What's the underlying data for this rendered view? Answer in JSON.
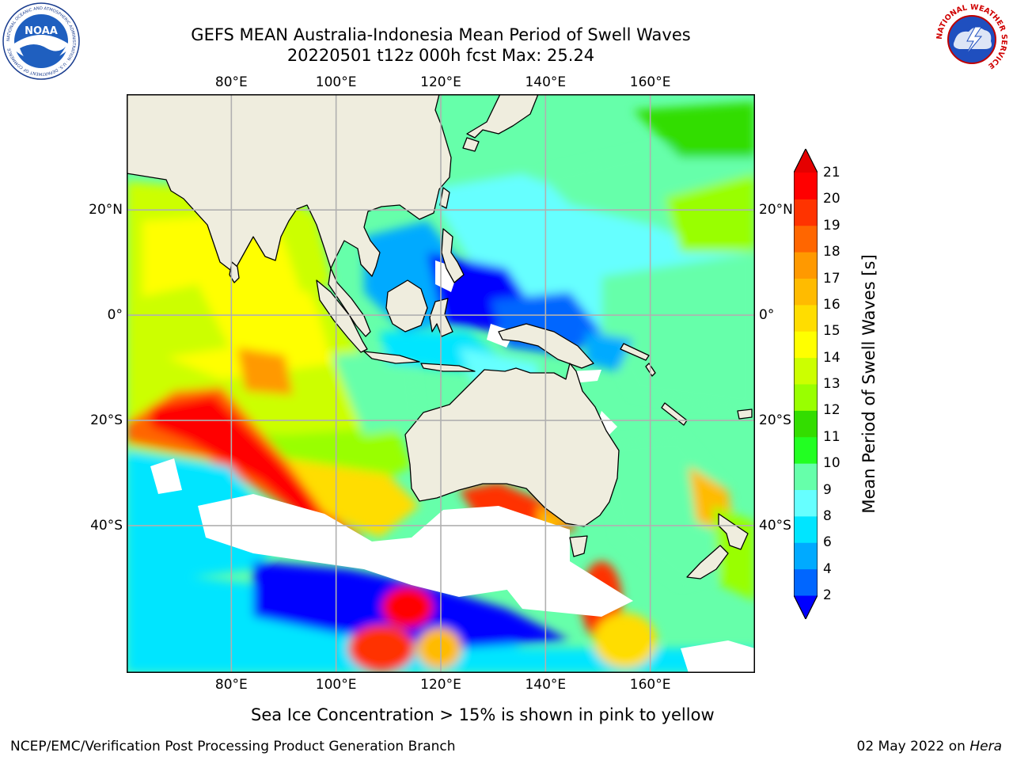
{
  "title": {
    "line1": "GEFS MEAN Australia-Indonesia Mean Period of Swell Waves",
    "line2": "20220501 t12z 000h fcst   Max: 25.24"
  },
  "map": {
    "lon_range": [
      60,
      180
    ],
    "lat_range": [
      -68,
      42
    ],
    "lon_ticks": [
      {
        "value": 80,
        "label": "80°E"
      },
      {
        "value": 100,
        "label": "100°E"
      },
      {
        "value": 120,
        "label": "120°E"
      },
      {
        "value": 140,
        "label": "140°E"
      },
      {
        "value": 160,
        "label": "160°E"
      }
    ],
    "lat_ticks": [
      {
        "value": 20,
        "label": "20°N"
      },
      {
        "value": 0,
        "label": "0°"
      },
      {
        "value": -20,
        "label": "20°S"
      },
      {
        "value": -40,
        "label": "40°S"
      }
    ],
    "land_color": "#efedde",
    "grid_color": "#b0b0b0"
  },
  "colorbar": {
    "label": "Mean Period of Swell Waves [s]",
    "ticks": [
      "2",
      "4",
      "6",
      "8",
      "9",
      "10",
      "11",
      "12",
      "13",
      "14",
      "15",
      "16",
      "17",
      "18",
      "19",
      "20",
      "21"
    ],
    "colors": [
      "#0000ff",
      "#0066ff",
      "#00aaff",
      "#00e5ff",
      "#66ffff",
      "#66ffaa",
      "#22ff22",
      "#33dd00",
      "#99ff00",
      "#ccff00",
      "#ffff00",
      "#ffdd00",
      "#ffbb00",
      "#ff9900",
      "#ff6600",
      "#ff3300",
      "#ff0000",
      "#e50000"
    ]
  },
  "footnote": "Sea Ice Concentration > 15% is shown in pink to yellow",
  "credit": {
    "left": "NCEP/EMC/Verification Post Processing Product Generation Branch",
    "date": "02 May 2022 on ",
    "machine": "Hera"
  },
  "logos": {
    "noaa_text": "NOAA",
    "noaa_ring": "NATIONAL OCEANIC AND ATMOSPHERIC ADMINISTRATION · U.S. DEPARTMENT OF COMMERCE",
    "nws_ring": "NATIONAL WEATHER SERVICE"
  }
}
